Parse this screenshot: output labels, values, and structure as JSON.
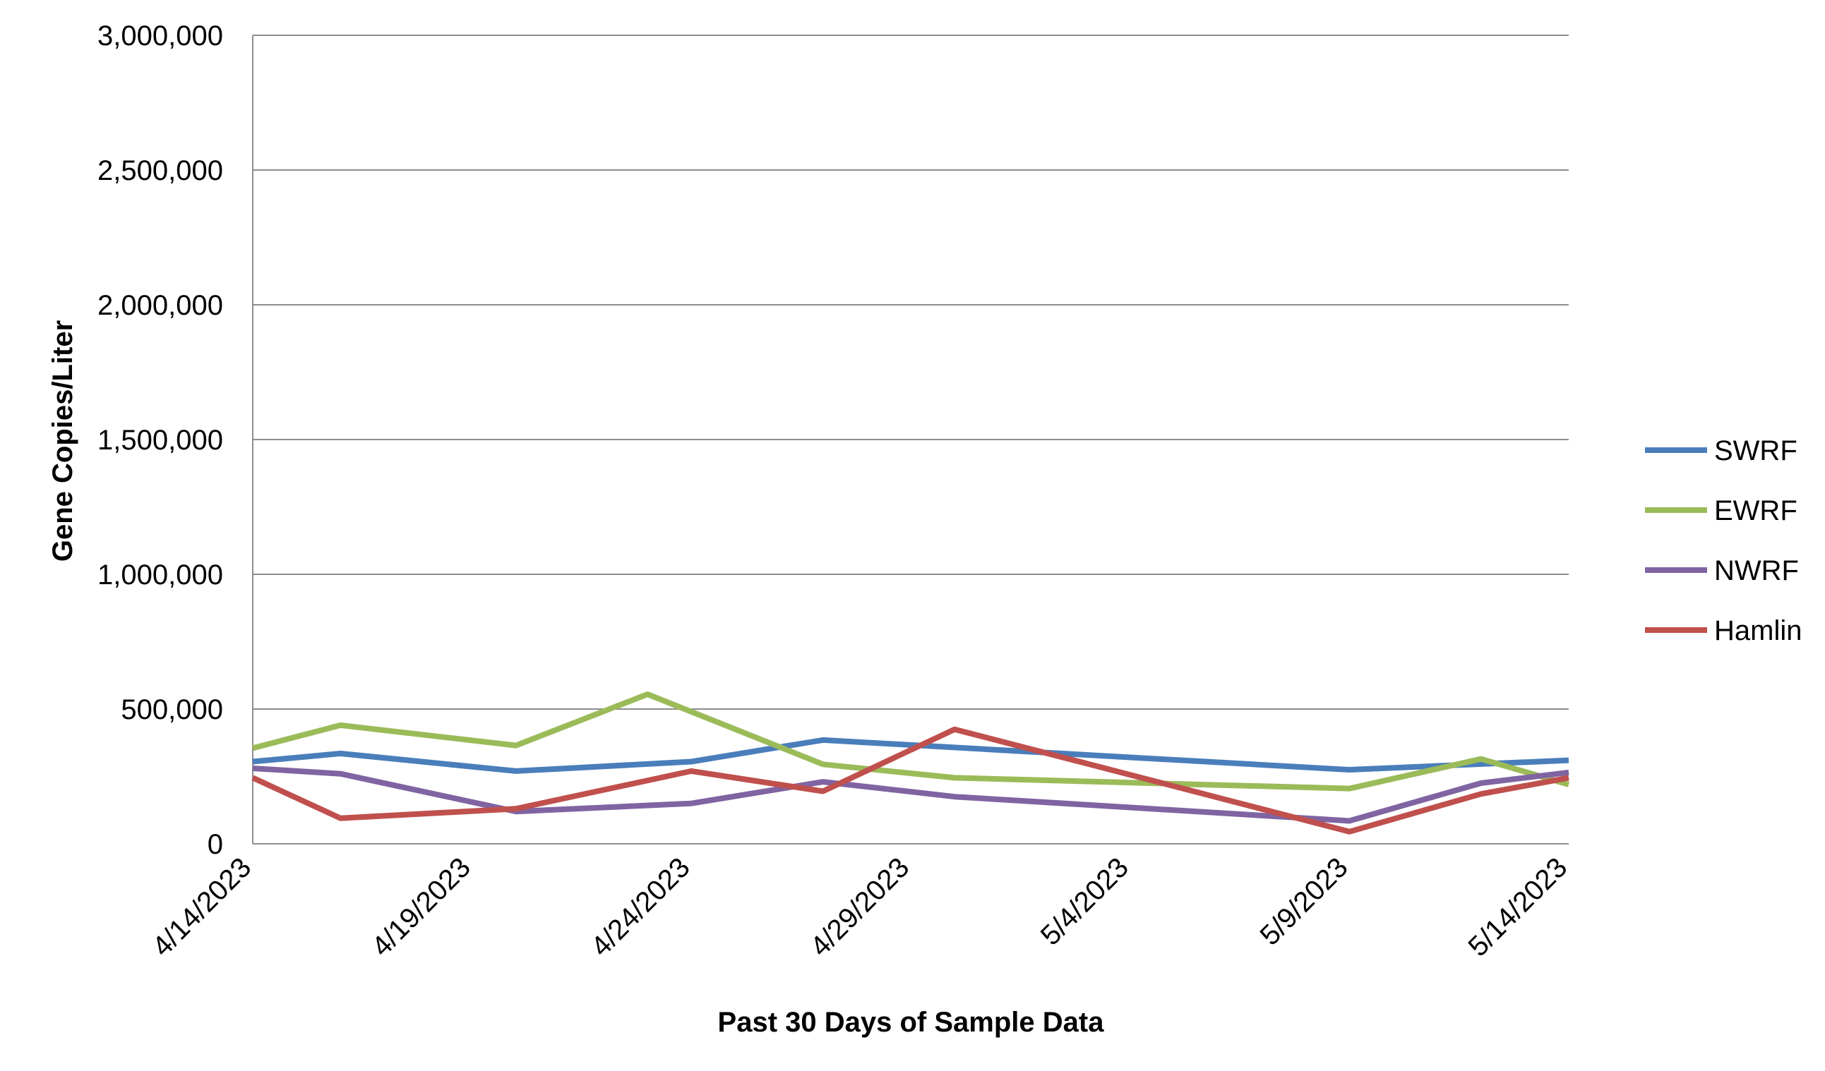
{
  "chart_data": {
    "type": "line",
    "title": "",
    "xlabel": "Past 30 Days of Sample Data",
    "ylabel": "Gene Copies/Liter",
    "ylim": [
      0,
      3000000
    ],
    "yticks": [
      0,
      500000,
      1000000,
      1500000,
      2000000,
      2500000,
      3000000
    ],
    "ytick_labels": [
      "0",
      "500,000",
      "1,000,000",
      "1,500,000",
      "2,000,000",
      "2,500,000",
      "3,000,000"
    ],
    "xlim": [
      "4/14/2023",
      "5/14/2023"
    ],
    "xticks": [
      "4/14/2023",
      "4/19/2023",
      "4/24/2023",
      "4/29/2023",
      "5/4/2023",
      "5/9/2023",
      "5/14/2023"
    ],
    "grid": true,
    "legend_position": "right",
    "series": [
      {
        "name": "SWRF",
        "color": "#4a7ebb",
        "x": [
          "4/14/2023",
          "4/16/2023",
          "4/20/2023",
          "4/24/2023",
          "4/27/2023",
          "5/9/2023",
          "5/14/2023"
        ],
        "y": [
          305000,
          335000,
          270000,
          305000,
          385000,
          275000,
          310000
        ]
      },
      {
        "name": "EWRF",
        "color": "#9bbb59",
        "x": [
          "4/14/2023",
          "4/16/2023",
          "4/20/2023",
          "4/23/2023",
          "4/27/2023",
          "4/30/2023",
          "5/9/2023",
          "5/12/2023",
          "5/14/2023"
        ],
        "y": [
          355000,
          440000,
          365000,
          555000,
          295000,
          245000,
          205000,
          315000,
          220000
        ]
      },
      {
        "name": "NWRF",
        "color": "#8064a2",
        "x": [
          "4/14/2023",
          "4/16/2023",
          "4/20/2023",
          "4/24/2023",
          "4/27/2023",
          "4/30/2023",
          "5/9/2023",
          "5/12/2023",
          "5/14/2023"
        ],
        "y": [
          280000,
          260000,
          120000,
          150000,
          230000,
          175000,
          85000,
          225000,
          265000
        ]
      },
      {
        "name": "Hamlin",
        "color": "#c0504d",
        "x": [
          "4/14/2023",
          "4/16/2023",
          "4/20/2023",
          "4/24/2023",
          "4/27/2023",
          "4/30/2023",
          "5/9/2023",
          "5/12/2023",
          "5/14/2023"
        ],
        "y": [
          245000,
          95000,
          130000,
          270000,
          195000,
          425000,
          45000,
          185000,
          245000
        ]
      }
    ]
  }
}
